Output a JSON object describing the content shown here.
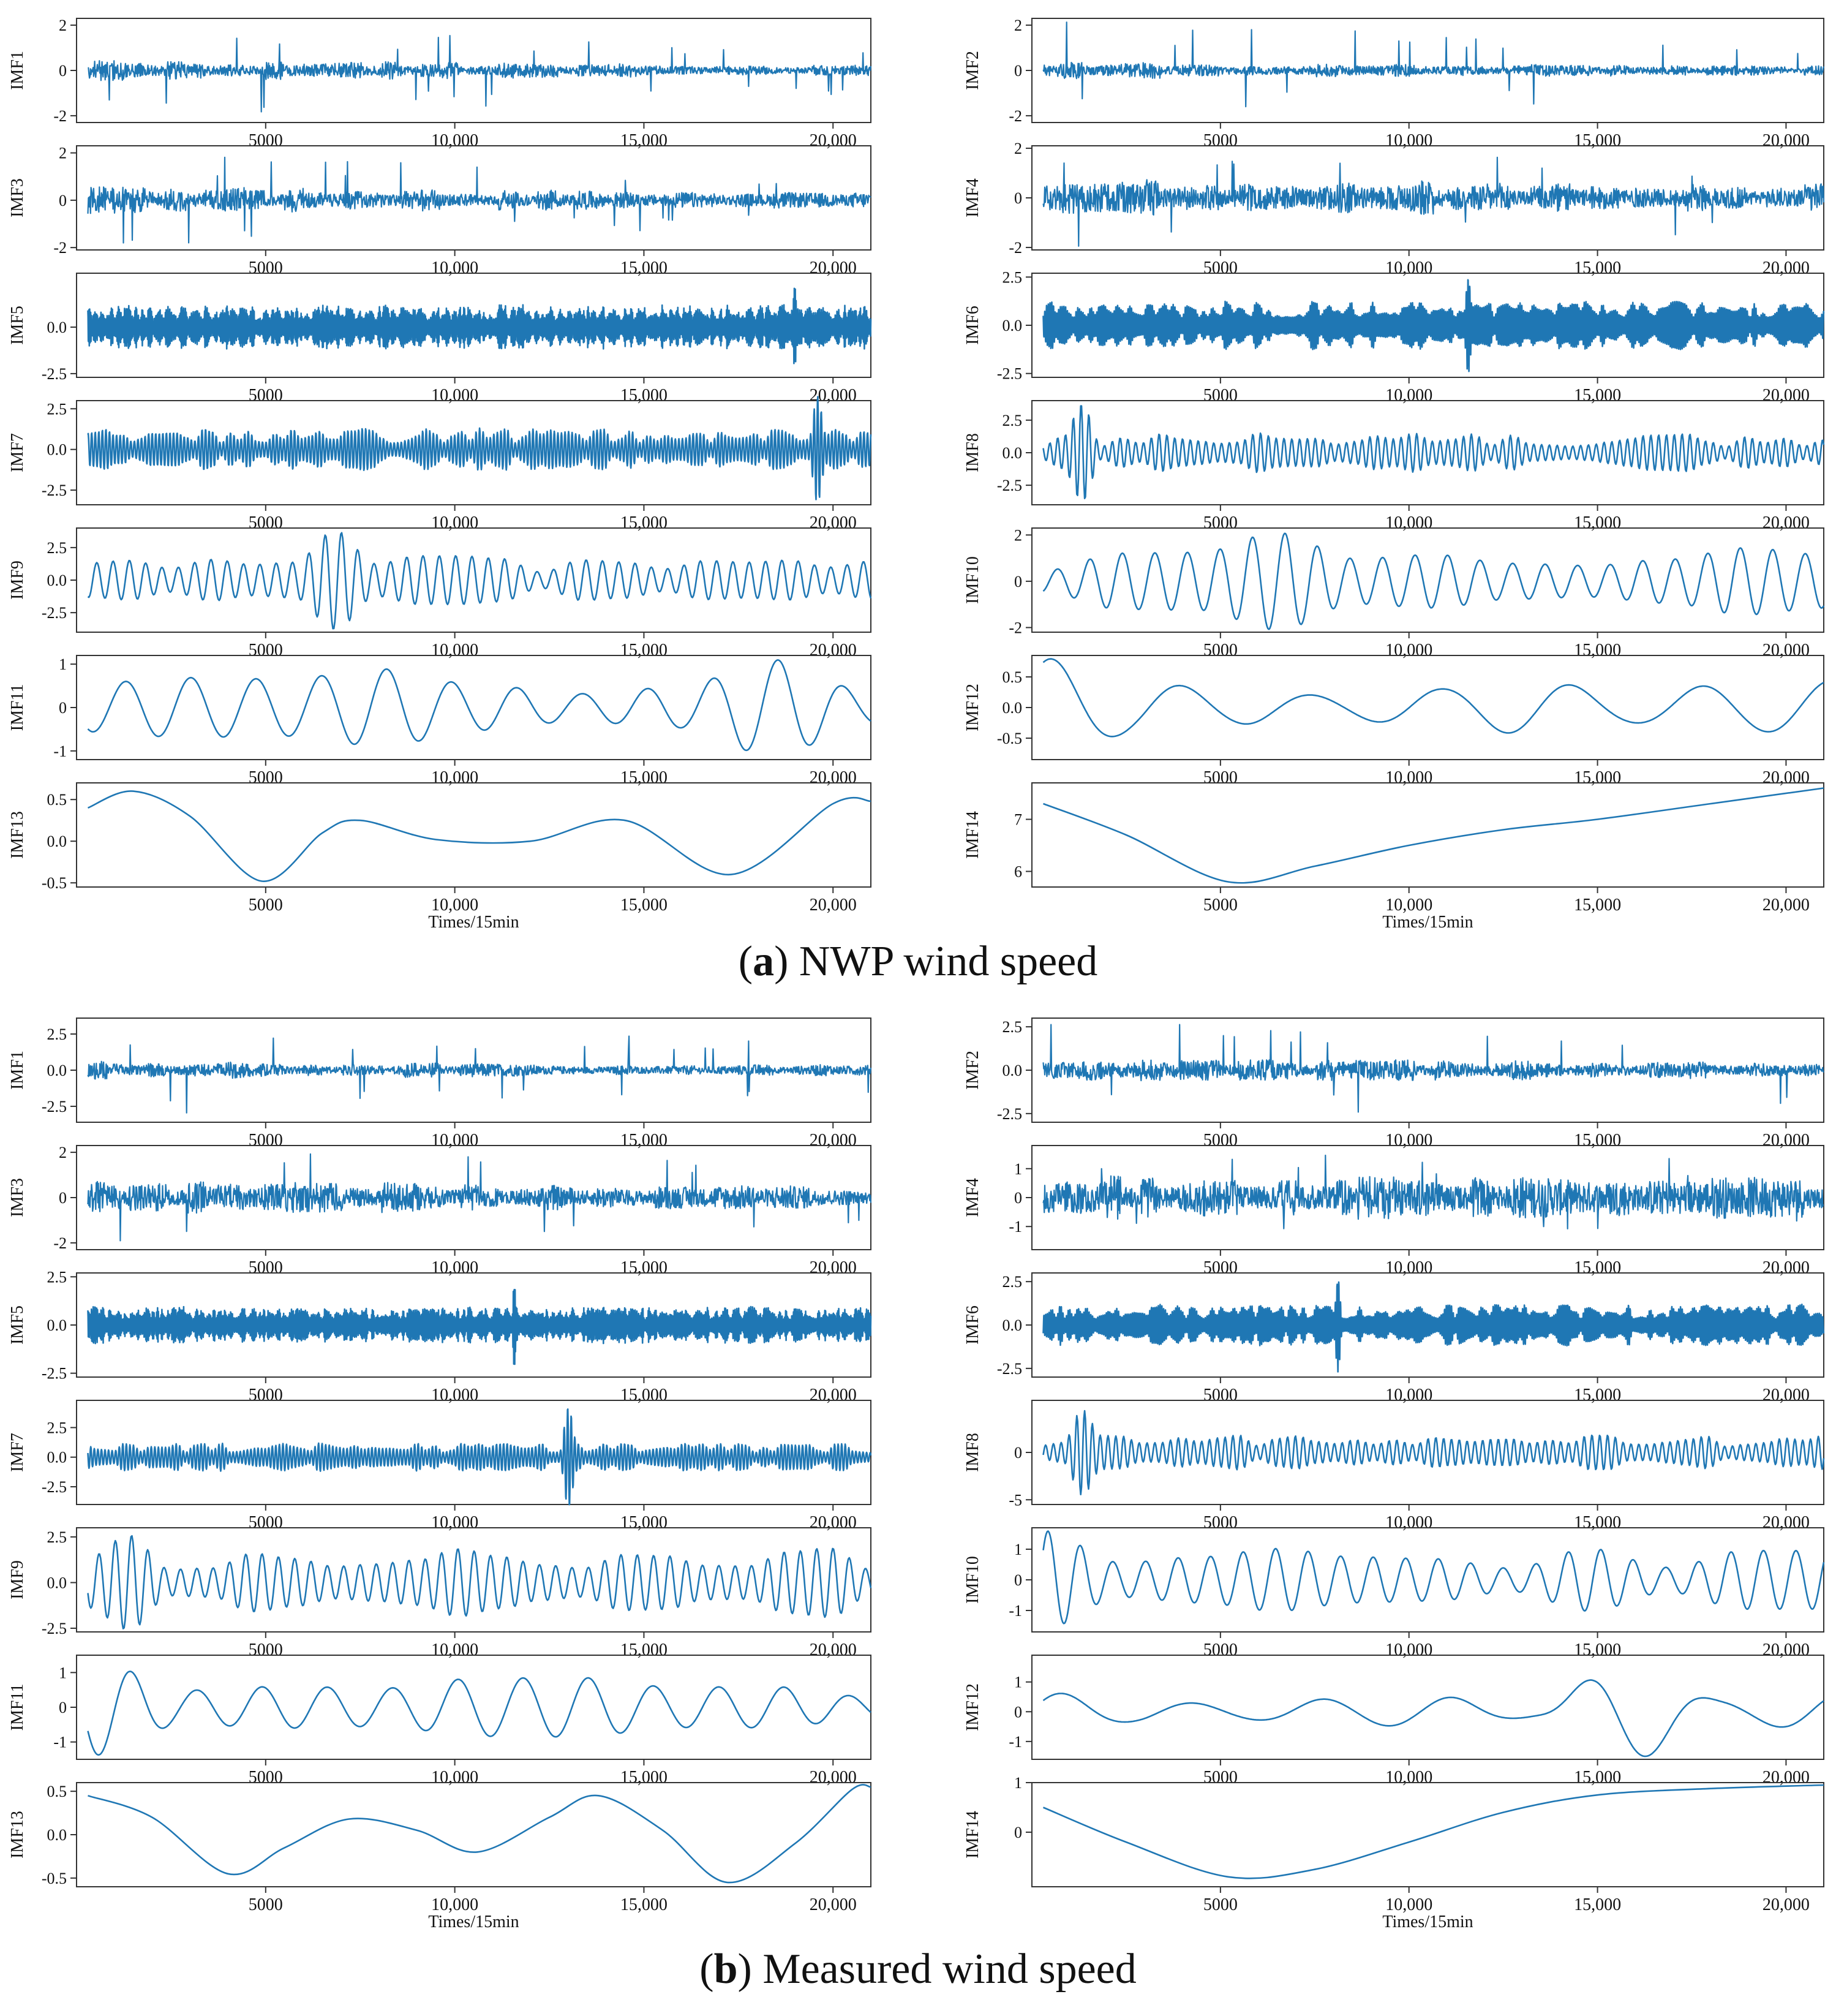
{
  "colors": {
    "line": "#1f77b4",
    "axis": "#333333",
    "text": "#111111"
  },
  "captions": {
    "a": {
      "letter": "a",
      "text": "NWP wind speed"
    },
    "b": {
      "letter": "b",
      "text": "Measured wind speed"
    }
  },
  "chart_data": [
    {
      "section": "a",
      "title": "NWP wind speed",
      "type": "line",
      "xlabel": "Times/15min",
      "x_ticks": [
        "5000",
        "10,000",
        "15,000",
        "20,000"
      ],
      "x_tick_values": [
        5000,
        10000,
        15000,
        20000
      ],
      "xlim": [
        0,
        21000
      ],
      "data_range": [
        300,
        21000
      ],
      "panels": [
        {
          "col": 0,
          "row": 0,
          "name": "IMF1",
          "ylabel": "IMF1",
          "ylim": [
            -2.3,
            2.3
          ],
          "yticks": [
            2,
            0,
            -2
          ],
          "ytick_labels": [
            "2",
            "0",
            "-2"
          ],
          "style": "noise",
          "amp": 0.35,
          "peak": 2.2,
          "seed": 11,
          "decay": 0.5
        },
        {
          "col": 1,
          "row": 0,
          "name": "IMF2",
          "ylabel": "IMF2",
          "ylim": [
            -2.3,
            2.3
          ],
          "yticks": [
            2,
            0,
            -2
          ],
          "ytick_labels": [
            "2",
            "0",
            "-2"
          ],
          "style": "noise",
          "amp": 0.3,
          "peak": 2.2,
          "seed": 12,
          "decay": 0.5
        },
        {
          "col": 0,
          "row": 1,
          "name": "IMF3",
          "ylabel": "IMF3",
          "ylim": [
            -2.1,
            2.3
          ],
          "yticks": [
            2,
            0,
            -2
          ],
          "ytick_labels": [
            "2",
            "0",
            "-2"
          ],
          "style": "noise",
          "amp": 0.45,
          "peak": 2.0,
          "seed": 13,
          "decay": 0.5
        },
        {
          "col": 1,
          "row": 1,
          "name": "IMF4",
          "ylabel": "IMF4",
          "ylim": [
            -2.1,
            2.1
          ],
          "yticks": [
            2,
            0,
            -2
          ],
          "ytick_labels": [
            "2",
            "0",
            "-2"
          ],
          "style": "noise",
          "amp": 0.6,
          "peak": 2.0,
          "seed": 14,
          "decay": 0.3
        },
        {
          "col": 0,
          "row": 2,
          "name": "IMF5",
          "ylabel": "IMF5",
          "ylim": [
            -2.7,
            2.9
          ],
          "yticks": [
            0.0,
            -2.5
          ],
          "ytick_labels": [
            "0.0",
            "-2.5"
          ],
          "style": "osc",
          "amp": 1.0,
          "peak": 2.4,
          "cycles": 900,
          "seed": 15
        },
        {
          "col": 1,
          "row": 2,
          "name": "IMF6",
          "ylabel": "IMF6",
          "ylim": [
            -2.7,
            2.7
          ],
          "yticks": [
            2.5,
            0.0,
            -2.5
          ],
          "ytick_labels": [
            "2.5",
            "0.0",
            "-2.5"
          ],
          "style": "osc",
          "amp": 1.1,
          "peak": 2.5,
          "cycles": 450,
          "seed": 16
        },
        {
          "col": 0,
          "row": 3,
          "name": "IMF7",
          "ylabel": "IMF7",
          "ylim": [
            -3.4,
            3.0
          ],
          "yticks": [
            2.5,
            0.0,
            -2.5
          ],
          "ytick_labels": [
            "2.5",
            "0.0",
            "-2.5"
          ],
          "style": "osc",
          "amp": 1.1,
          "peak": 3.3,
          "cycles": 220,
          "seed": 17
        },
        {
          "col": 1,
          "row": 3,
          "name": "IMF8",
          "ylabel": "IMF8",
          "ylim": [
            -4.0,
            4.0
          ],
          "yticks": [
            2.5,
            0.0,
            -2.5
          ],
          "ytick_labels": [
            "2.5",
            "0.0",
            "-2.5"
          ],
          "style": "osc",
          "amp": 1.3,
          "peak": 3.8,
          "cycles": 100,
          "seed": 18
        },
        {
          "col": 0,
          "row": 4,
          "name": "IMF9",
          "ylabel": "IMF9",
          "ylim": [
            -4.0,
            4.0
          ],
          "yticks": [
            2.5,
            0.0,
            -2.5
          ],
          "ytick_labels": [
            "2.5",
            "0.0",
            "-2.5"
          ],
          "style": "osc",
          "amp": 1.6,
          "peak": 3.8,
          "cycles": 48,
          "seed": 19
        },
        {
          "col": 1,
          "row": 4,
          "name": "IMF10",
          "ylabel": "IMF10",
          "ylim": [
            -2.2,
            2.3
          ],
          "yticks": [
            2,
            0,
            -2
          ],
          "ytick_labels": [
            "2",
            "0",
            "-2"
          ],
          "style": "osc",
          "amp": 1.3,
          "peak": 2.1,
          "cycles": 24,
          "seed": 20
        },
        {
          "col": 0,
          "row": 5,
          "name": "IMF11",
          "ylabel": "IMF11",
          "ylim": [
            -1.2,
            1.2
          ],
          "yticks": [
            1,
            0,
            -1
          ],
          "ytick_labels": [
            "1",
            "0",
            "-1"
          ],
          "style": "osc",
          "amp": 0.75,
          "peak": 1.1,
          "cycles": 12,
          "seed": 21
        },
        {
          "col": 1,
          "row": 5,
          "name": "IMF12",
          "ylabel": "IMF12",
          "ylim": [
            -0.85,
            0.85
          ],
          "yticks": [
            0.5,
            0.0,
            -0.5
          ],
          "ytick_labels": [
            "0.5",
            "0.0",
            "-0.5"
          ],
          "style": "osc",
          "amp": 0.45,
          "peak": 0.8,
          "cycles": 6,
          "seed": 22
        },
        {
          "col": 0,
          "row": 6,
          "name": "IMF13",
          "ylabel": "IMF13",
          "ylim": [
            -0.55,
            0.7
          ],
          "yticks": [
            0.5,
            0.0,
            -0.5
          ],
          "ytick_labels": [
            "0.5",
            "0.0",
            "-0.5"
          ],
          "style": "curve",
          "points": [
            [
              300,
              0.4
            ],
            [
              1500,
              0.6
            ],
            [
              3000,
              0.3
            ],
            [
              4900,
              -0.48
            ],
            [
              6500,
              0.1
            ],
            [
              7500,
              0.25
            ],
            [
              9500,
              0.02
            ],
            [
              12000,
              0.0
            ],
            [
              14500,
              0.25
            ],
            [
              17300,
              -0.4
            ],
            [
              20000,
              0.45
            ],
            [
              21000,
              0.48
            ]
          ]
        },
        {
          "col": 1,
          "row": 6,
          "name": "IMF14",
          "ylabel": "IMF14",
          "ylim": [
            5.7,
            7.7
          ],
          "yticks": [
            7,
            6
          ],
          "ytick_labels": [
            "7",
            "6"
          ],
          "style": "curve",
          "points": [
            [
              300,
              7.3
            ],
            [
              2500,
              6.7
            ],
            [
              5200,
              5.8
            ],
            [
              7500,
              6.1
            ],
            [
              10000,
              6.5
            ],
            [
              12500,
              6.8
            ],
            [
              15000,
              7.0
            ],
            [
              18000,
              7.3
            ],
            [
              21000,
              7.6
            ]
          ]
        }
      ]
    },
    {
      "section": "b",
      "title": "Measured wind speed",
      "type": "line",
      "xlabel": "Times/15min",
      "x_ticks": [
        "5000",
        "10,000",
        "15,000",
        "20,000"
      ],
      "x_tick_values": [
        5000,
        10000,
        15000,
        20000
      ],
      "xlim": [
        0,
        21000
      ],
      "data_range": [
        300,
        21000
      ],
      "panels": [
        {
          "col": 0,
          "row": 0,
          "name": "IMF1",
          "ylabel": "IMF1",
          "ylim": [
            -3.6,
            3.6
          ],
          "yticks": [
            2.5,
            0.0,
            -2.5
          ],
          "ytick_labels": [
            "2.5",
            "0.0",
            "-2.5"
          ],
          "style": "noise",
          "amp": 0.45,
          "peak": 3.3,
          "seed": 31,
          "decay": 0.4
        },
        {
          "col": 1,
          "row": 0,
          "name": "IMF2",
          "ylabel": "IMF2",
          "ylim": [
            -3.0,
            3.0
          ],
          "yticks": [
            2.5,
            0.0,
            -2.5
          ],
          "ytick_labels": [
            "2.5",
            "0.0",
            "-2.5"
          ],
          "style": "noise",
          "amp": 0.5,
          "peak": 2.8,
          "seed": 32,
          "decay": 0.3
        },
        {
          "col": 0,
          "row": 1,
          "name": "IMF3",
          "ylabel": "IMF3",
          "ylim": [
            -2.3,
            2.3
          ],
          "yticks": [
            2,
            0,
            -2
          ],
          "ytick_labels": [
            "2",
            "0",
            "-2"
          ],
          "style": "noise",
          "amp": 0.55,
          "peak": 2.2,
          "seed": 33,
          "decay": 0.3
        },
        {
          "col": 1,
          "row": 1,
          "name": "IMF4",
          "ylabel": "IMF4",
          "ylim": [
            -1.8,
            1.8
          ],
          "yticks": [
            1,
            0,
            -1
          ],
          "ytick_labels": [
            "1",
            "0",
            "-1"
          ],
          "style": "noise",
          "amp": 0.6,
          "peak": 1.6,
          "seed": 34,
          "decay": 0.15
        },
        {
          "col": 0,
          "row": 2,
          "name": "IMF5",
          "ylabel": "IMF5",
          "ylim": [
            -2.7,
            2.7
          ],
          "yticks": [
            2.5,
            0.0,
            -2.5
          ],
          "ytick_labels": [
            "2.5",
            "0.0",
            "-2.5"
          ],
          "style": "osc",
          "amp": 0.8,
          "peak": 2.4,
          "cycles": 900,
          "seed": 35
        },
        {
          "col": 1,
          "row": 2,
          "name": "IMF6",
          "ylabel": "IMF6",
          "ylim": [
            -3.0,
            3.0
          ],
          "yticks": [
            2.5,
            0.0,
            -2.5
          ],
          "ytick_labels": [
            "2.5",
            "0.0",
            "-2.5"
          ],
          "style": "osc",
          "amp": 1.0,
          "peak": 2.7,
          "cycles": 450,
          "seed": 36
        },
        {
          "col": 0,
          "row": 3,
          "name": "IMF7",
          "ylabel": "IMF7",
          "ylim": [
            -4.0,
            4.8
          ],
          "yticks": [
            2.5,
            0.0,
            -2.5
          ],
          "ytick_labels": [
            "2.5",
            "0.0",
            "-2.5"
          ],
          "style": "osc",
          "amp": 1.0,
          "peak": 4.3,
          "cycles": 220,
          "seed": 37
        },
        {
          "col": 1,
          "row": 3,
          "name": "IMF8",
          "ylabel": "IMF8",
          "ylim": [
            -5.5,
            5.5
          ],
          "yticks": [
            0,
            -5
          ],
          "ytick_labels": [
            "0",
            "-5"
          ],
          "style": "osc",
          "amp": 1.6,
          "peak": 4.5,
          "cycles": 100,
          "seed": 38
        },
        {
          "col": 0,
          "row": 4,
          "name": "IMF9",
          "ylabel": "IMF9",
          "ylim": [
            -2.7,
            3.0
          ],
          "yticks": [
            2.5,
            0.0,
            -2.5
          ],
          "ytick_labels": [
            "2.5",
            "0.0",
            "-2.5"
          ],
          "style": "osc",
          "amp": 1.6,
          "peak": 2.6,
          "cycles": 48,
          "seed": 39
        },
        {
          "col": 1,
          "row": 4,
          "name": "IMF10",
          "ylabel": "IMF10",
          "ylim": [
            -1.7,
            1.7
          ],
          "yticks": [
            1,
            0,
            -1
          ],
          "ytick_labels": [
            "1",
            "0",
            "-1"
          ],
          "style": "osc",
          "amp": 0.9,
          "peak": 1.6,
          "cycles": 24,
          "seed": 40
        },
        {
          "col": 0,
          "row": 5,
          "name": "IMF11",
          "ylabel": "IMF11",
          "ylim": [
            -1.5,
            1.5
          ],
          "yticks": [
            1,
            0,
            -1
          ],
          "ytick_labels": [
            "1",
            "0",
            "-1"
          ],
          "style": "osc",
          "amp": 0.8,
          "peak": 1.4,
          "cycles": 12,
          "seed": 41
        },
        {
          "col": 1,
          "row": 5,
          "name": "IMF12",
          "ylabel": "IMF12",
          "ylim": [
            -1.6,
            1.9
          ],
          "yticks": [
            1,
            0,
            -1
          ],
          "ytick_labels": [
            "1",
            "0",
            "-1"
          ],
          "style": "osc",
          "amp": 0.55,
          "peak": 1.6,
          "cycles": 6,
          "seed": 42
        },
        {
          "col": 0,
          "row": 6,
          "name": "IMF13",
          "ylabel": "IMF13",
          "ylim": [
            -0.6,
            0.6
          ],
          "yticks": [
            0.5,
            0.0,
            -0.5
          ],
          "ytick_labels": [
            "0.5",
            "0.0",
            "-0.5"
          ],
          "style": "curve",
          "points": [
            [
              300,
              0.45
            ],
            [
              2000,
              0.2
            ],
            [
              4000,
              -0.45
            ],
            [
              5500,
              -0.15
            ],
            [
              7200,
              0.18
            ],
            [
              9000,
              0.05
            ],
            [
              10600,
              -0.2
            ],
            [
              12500,
              0.2
            ],
            [
              13800,
              0.45
            ],
            [
              15500,
              0.05
            ],
            [
              17200,
              -0.55
            ],
            [
              19000,
              -0.1
            ],
            [
              20500,
              0.52
            ],
            [
              21000,
              0.55
            ]
          ]
        },
        {
          "col": 1,
          "row": 6,
          "name": "IMF14",
          "ylabel": "IMF14",
          "ylim": [
            -1.1,
            1.0
          ],
          "yticks": [
            1,
            0
          ],
          "ytick_labels": [
            "1",
            "0"
          ],
          "style": "curve",
          "points": [
            [
              300,
              0.5
            ],
            [
              2500,
              -0.2
            ],
            [
              5200,
              -0.9
            ],
            [
              7500,
              -0.75
            ],
            [
              10000,
              -0.2
            ],
            [
              12500,
              0.4
            ],
            [
              15000,
              0.75
            ],
            [
              18000,
              0.88
            ],
            [
              21000,
              0.95
            ]
          ]
        }
      ]
    }
  ]
}
